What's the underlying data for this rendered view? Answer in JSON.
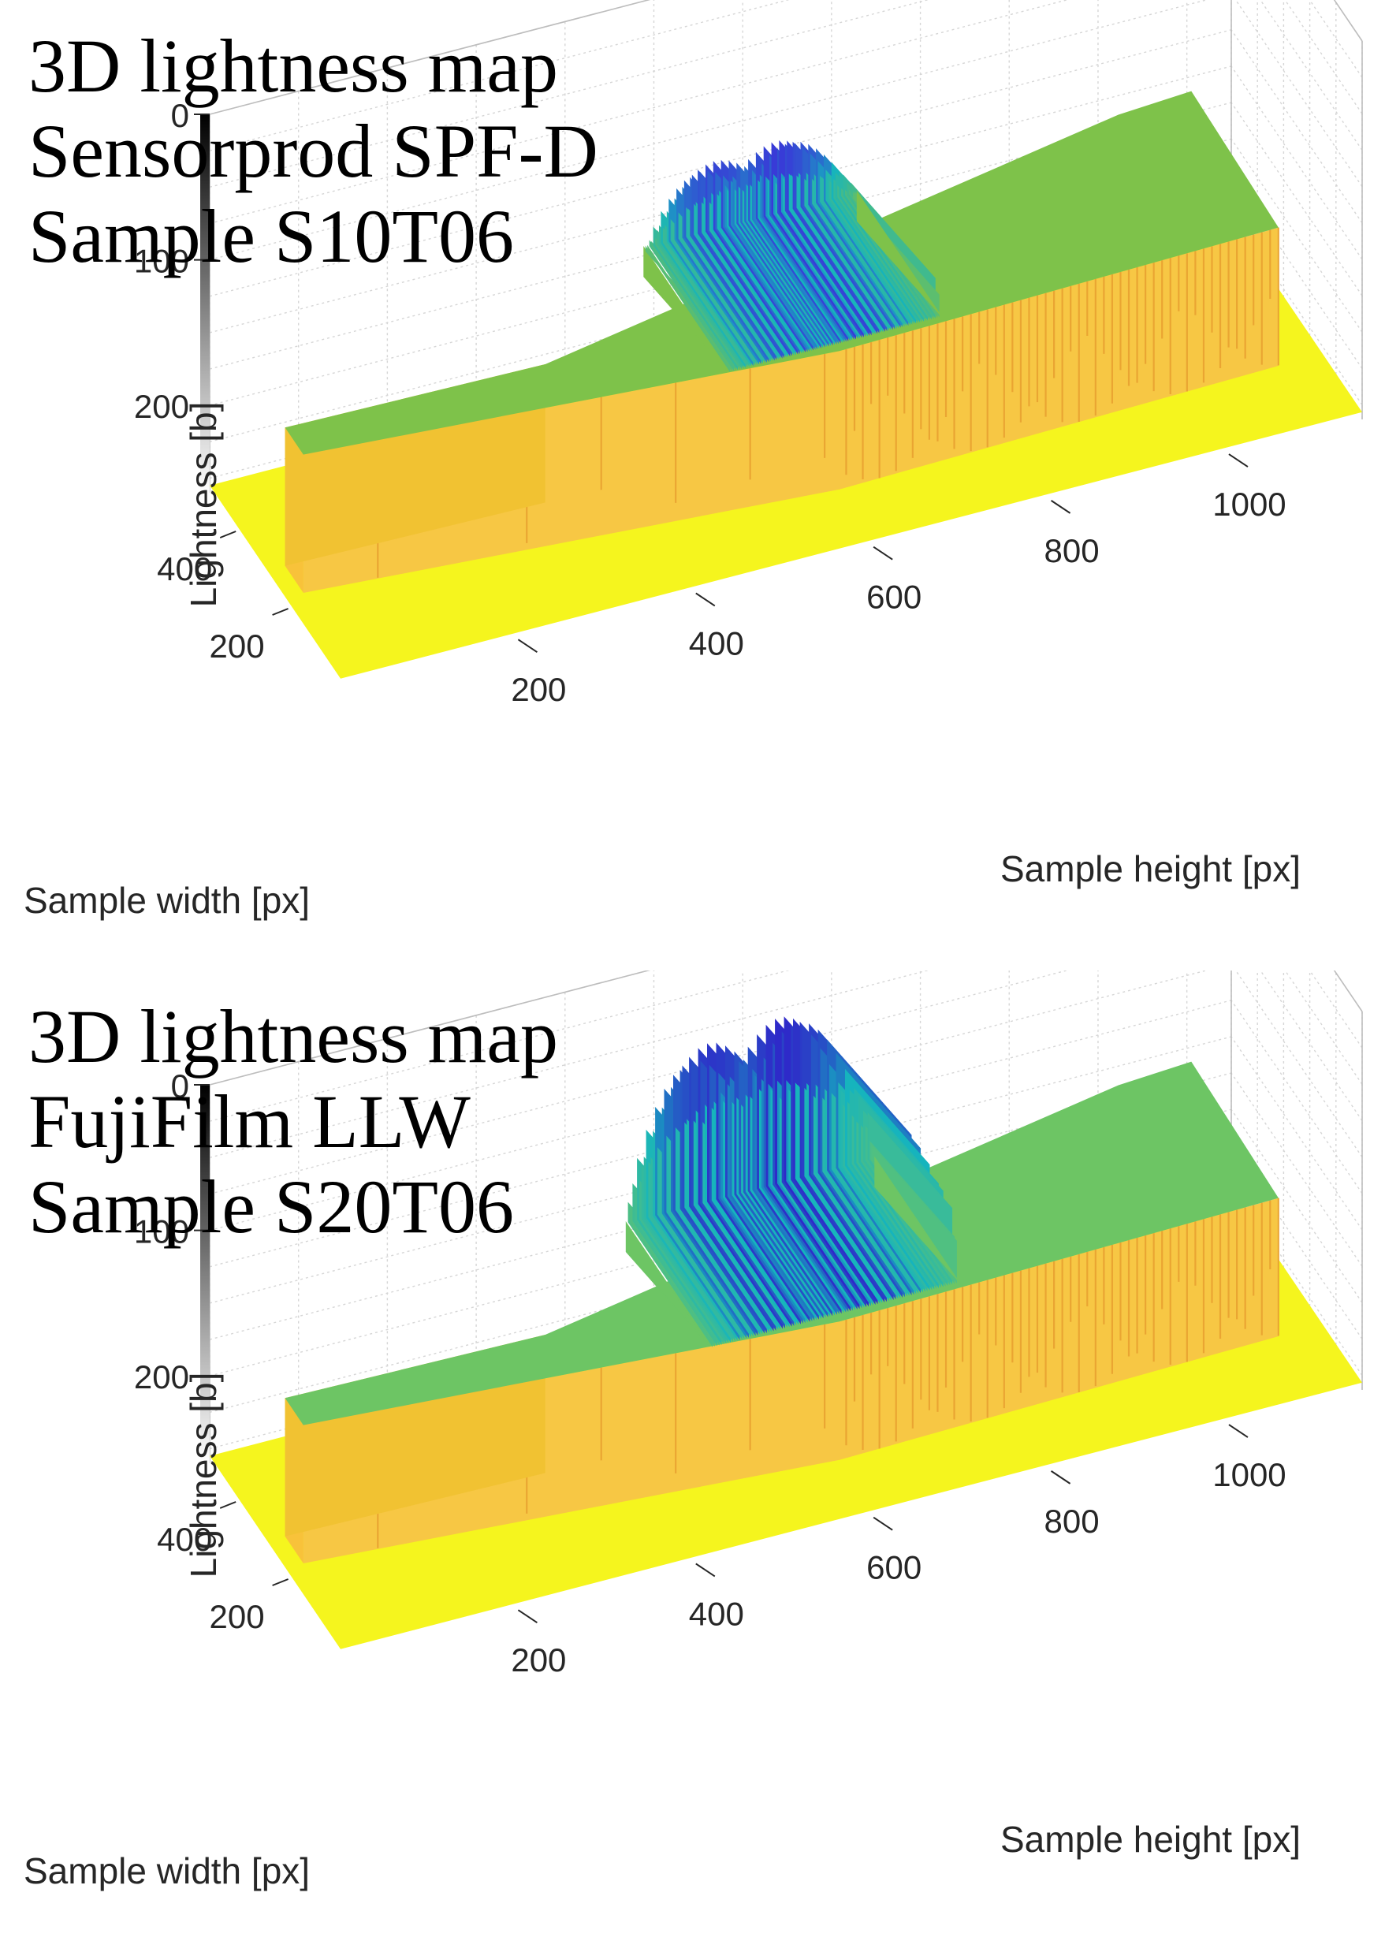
{
  "chart_data": [
    {
      "type": "surface3d",
      "title": [
        "3D lightness map",
        "Sensorprod SPF-D",
        "Sample S10T06"
      ],
      "xlabel": "Sample height [px]",
      "ylabel": "Sample width [px]",
      "zlabel": "Lightness [b]",
      "x_ticks": [
        200,
        400,
        600,
        800,
        1000
      ],
      "y_ticks": [
        400,
        200
      ],
      "z_ticks": [
        0,
        100,
        200
      ],
      "xlim": [
        0,
        1150
      ],
      "ylim": [
        0,
        500
      ],
      "zlim": [
        0,
        260
      ],
      "z_reversed": true,
      "grid": true,
      "colormap": "parula",
      "colorbar": "grayscale",
      "baseline_value": 255,
      "plateau_value": 160,
      "peak_region": {
        "x_range": [
          480,
          720
        ],
        "min_value": 85
      },
      "colors": {
        "plateau": "#7ec24a",
        "base": "#f5f51e",
        "peak": "#3a36d8",
        "teal": "#14b4bf"
      }
    },
    {
      "type": "surface3d",
      "title": [
        "3D lightness map",
        "FujiFilm LLW",
        "Sample S20T06"
      ],
      "xlabel": "Sample height [px]",
      "ylabel": "Sample width [px]",
      "zlabel": "Lightness [b]",
      "x_ticks": [
        200,
        400,
        600,
        800,
        1000
      ],
      "y_ticks": [
        400,
        200
      ],
      "z_ticks": [
        0,
        100,
        200
      ],
      "xlim": [
        0,
        1150
      ],
      "ylim": [
        0,
        500
      ],
      "zlim": [
        0,
        260
      ],
      "z_reversed": true,
      "grid": true,
      "colormap": "parula",
      "colorbar": "grayscale",
      "baseline_value": 255,
      "plateau_value": 160,
      "peak_region": {
        "x_range": [
          460,
          740
        ],
        "min_value": 15
      },
      "colors": {
        "plateau": "#6dc564",
        "base": "#f5f51e",
        "peak": "#2f26c9",
        "teal": "#14b4bf"
      }
    }
  ]
}
